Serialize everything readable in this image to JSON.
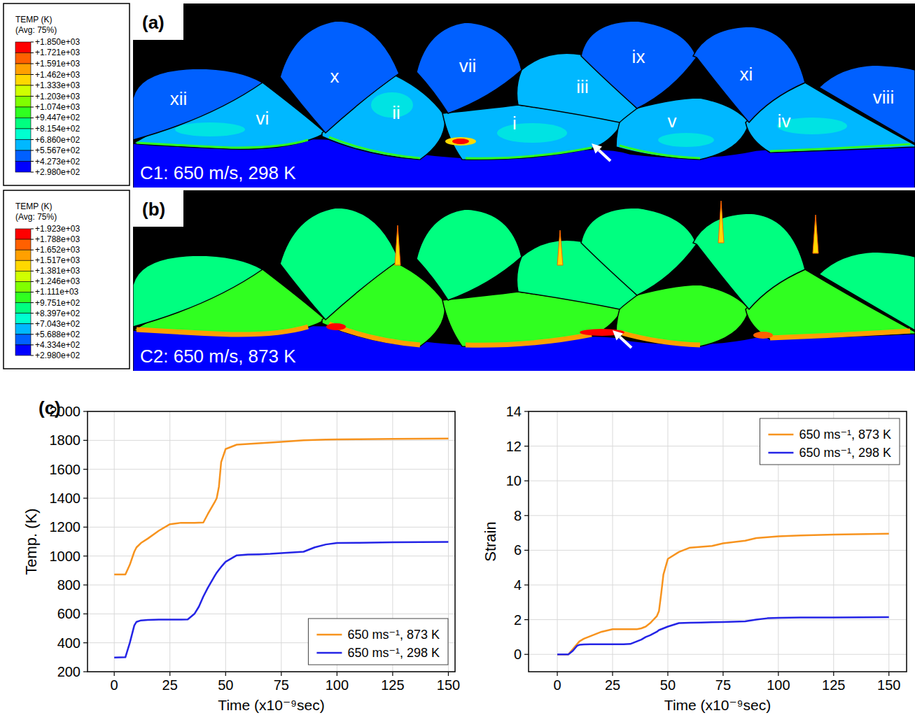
{
  "figure": {
    "panels": [
      {
        "letter": "(a)",
        "caption": "C1: 650 m/s, 298 K",
        "colorbar": {
          "title": "TEMP (K)",
          "subtitle": "(Avg: 75%)",
          "range": [
            298,
            1850
          ],
          "ticks": [
            {
              "value": 1850,
              "label": "+1.850e+03"
            },
            {
              "value": 1721,
              "label": "+1.721e+03"
            },
            {
              "value": 1591,
              "label": "+1.591e+03"
            },
            {
              "value": 1462,
              "label": "+1.462e+03"
            },
            {
              "value": 1333,
              "label": "+1.333e+03"
            },
            {
              "value": 1203,
              "label": "+1.203e+03"
            },
            {
              "value": 1074,
              "label": "+1.074e+03"
            },
            {
              "value": 944.7,
              "label": "+9.447e+02"
            },
            {
              "value": 815.4,
              "label": "+8.154e+02"
            },
            {
              "value": 686.0,
              "label": "+6.860e+02"
            },
            {
              "value": 556.7,
              "label": "+5.567e+02"
            },
            {
              "value": 427.3,
              "label": "+4.273e+02"
            },
            {
              "value": 298.0,
              "label": "+2.980e+02"
            }
          ],
          "colors": [
            "#ff0000",
            "#ff6000",
            "#ffa000",
            "#ffd800",
            "#d0ff00",
            "#80ff00",
            "#30ff20",
            "#00ff80",
            "#00ffd0",
            "#00b8ff",
            "#0060ff",
            "#0000ff"
          ]
        },
        "particle_labels": [
          "xii",
          "x",
          "vii",
          "iii",
          "ix",
          "xi",
          "viii",
          "vi",
          "ii",
          "i",
          "v",
          "iv"
        ]
      },
      {
        "letter": "(b)",
        "caption": "C2: 650 m/s, 873 K",
        "colorbar": {
          "title": "TEMP (K)",
          "subtitle": "(Avg: 75%)",
          "range": [
            298,
            1923
          ],
          "ticks": [
            {
              "value": 1923,
              "label": "+1.923e+03"
            },
            {
              "value": 1788,
              "label": "+1.788e+03"
            },
            {
              "value": 1652,
              "label": "+1.652e+03"
            },
            {
              "value": 1517,
              "label": "+1.517e+03"
            },
            {
              "value": 1381,
              "label": "+1.381e+03"
            },
            {
              "value": 1246,
              "label": "+1.246e+03"
            },
            {
              "value": 1111,
              "label": "+1.111e+03"
            },
            {
              "value": 975.1,
              "label": "+9.751e+02"
            },
            {
              "value": 839.7,
              "label": "+8.397e+02"
            },
            {
              "value": 704.3,
              "label": "+7.043e+02"
            },
            {
              "value": 568.8,
              "label": "+5.688e+02"
            },
            {
              "value": 433.4,
              "label": "+4.334e+02"
            },
            {
              "value": 298.0,
              "label": "+2.980e+02"
            }
          ],
          "colors": [
            "#ff0000",
            "#ff6000",
            "#ffa000",
            "#ffd800",
            "#d0ff00",
            "#80ff00",
            "#30ff20",
            "#00ff80",
            "#00ffd0",
            "#00b8ff",
            "#0060ff",
            "#0000ff"
          ]
        },
        "particle_labels": []
      }
    ],
    "panel_c_letter": "(c)"
  },
  "chart_data": [
    {
      "type": "line",
      "xlabel": "Time (x10⁻⁹sec)",
      "ylabel": "Temp. (K)",
      "x": [
        0,
        5,
        7,
        9,
        10,
        12,
        15,
        20,
        25,
        30,
        33,
        36,
        38,
        40,
        42,
        45,
        46,
        47,
        48,
        50,
        55,
        60,
        65,
        70,
        75,
        85,
        90,
        95,
        100,
        110,
        125,
        150
      ],
      "xlim": [
        -12,
        153
      ],
      "ylim": [
        200,
        2000
      ],
      "xticks": [
        0,
        25,
        50,
        75,
        100,
        125,
        150
      ],
      "yticks": [
        200,
        400,
        600,
        800,
        1000,
        1200,
        1400,
        1600,
        1800,
        2000
      ],
      "grid": true,
      "legend": "lower right",
      "series": [
        {
          "name": "650 ms⁻¹, 873 K",
          "color": "#f7931e",
          "values": [
            873,
            873,
            940,
            1030,
            1060,
            1090,
            1120,
            1175,
            1220,
            1230,
            1230,
            1230,
            1231,
            1232,
            1290,
            1370,
            1400,
            1480,
            1650,
            1740,
            1770,
            1775,
            1780,
            1785,
            1790,
            1800,
            1803,
            1805,
            1807,
            1808,
            1810,
            1812
          ]
        },
        {
          "name": "650 ms⁻¹, 298 K",
          "color": "#2424e6",
          "values": [
            298,
            300,
            400,
            520,
            545,
            555,
            558,
            560,
            560,
            560,
            562,
            600,
            650,
            720,
            780,
            860,
            885,
            905,
            925,
            960,
            1005,
            1010,
            1012,
            1015,
            1020,
            1030,
            1060,
            1080,
            1090,
            1092,
            1095,
            1098
          ]
        }
      ]
    },
    {
      "type": "line",
      "xlabel": "Time (x10⁻⁹sec)",
      "ylabel": "Strain",
      "x": [
        0,
        5,
        7,
        9,
        10,
        12,
        15,
        20,
        25,
        30,
        33,
        36,
        38,
        40,
        42,
        45,
        46,
        47,
        48,
        50,
        55,
        60,
        65,
        70,
        75,
        85,
        90,
        95,
        100,
        110,
        125,
        150
      ],
      "xlim": [
        -13,
        158
      ],
      "ylim": [
        -1,
        14
      ],
      "xticks": [
        0,
        25,
        50,
        75,
        100,
        125,
        150
      ],
      "yticks": [
        0,
        2,
        4,
        6,
        8,
        10,
        12,
        14
      ],
      "grid": true,
      "legend": "upper right",
      "series": [
        {
          "name": "650 ms⁻¹, 873 K",
          "color": "#f7931e",
          "values": [
            0,
            0,
            0.3,
            0.6,
            0.75,
            0.9,
            1.05,
            1.3,
            1.45,
            1.45,
            1.45,
            1.45,
            1.5,
            1.6,
            1.8,
            2.2,
            2.5,
            3.5,
            4.6,
            5.5,
            5.9,
            6.15,
            6.2,
            6.25,
            6.4,
            6.55,
            6.7,
            6.75,
            6.8,
            6.85,
            6.9,
            6.95
          ]
        },
        {
          "name": "650 ms⁻¹, 298 K",
          "color": "#2424e6",
          "values": [
            0,
            0,
            0.2,
            0.5,
            0.55,
            0.57,
            0.58,
            0.58,
            0.58,
            0.58,
            0.6,
            0.75,
            0.85,
            1.0,
            1.1,
            1.3,
            1.4,
            1.45,
            1.5,
            1.6,
            1.8,
            1.82,
            1.83,
            1.85,
            1.86,
            1.9,
            2.0,
            2.08,
            2.1,
            2.12,
            2.13,
            2.15
          ]
        }
      ]
    }
  ]
}
